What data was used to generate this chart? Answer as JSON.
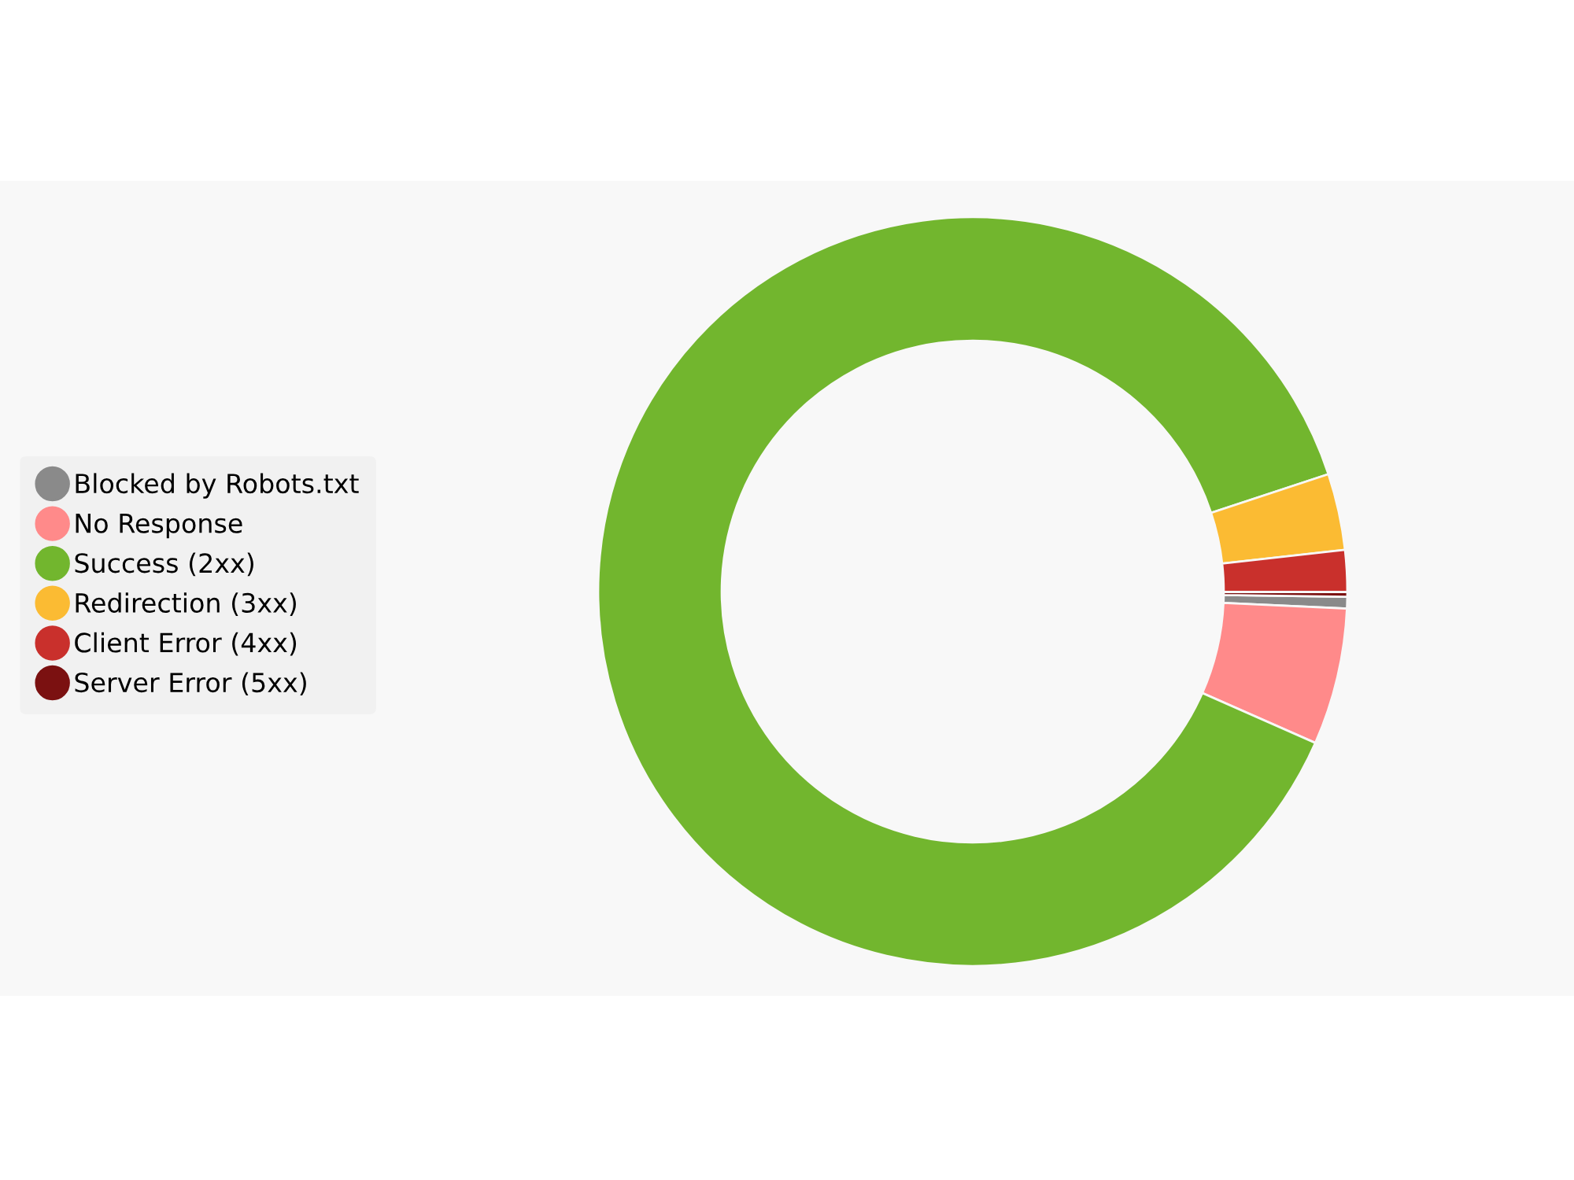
{
  "chart_data": {
    "type": "donut",
    "categories": [
      "Blocked by Robots.txt",
      "No Response",
      "Success (2xx)",
      "Redirection (3xx)",
      "Client Error (4xx)",
      "Server Error (5xx)"
    ],
    "values": [
      0.5,
      5.9,
      88.3,
      3.3,
      1.8,
      0.2
    ],
    "colors": [
      "#8a8a8a",
      "#ff8a8a",
      "#72b62e",
      "#fbbb33",
      "#c9302c",
      "#7b1111"
    ],
    "legend": "left"
  }
}
